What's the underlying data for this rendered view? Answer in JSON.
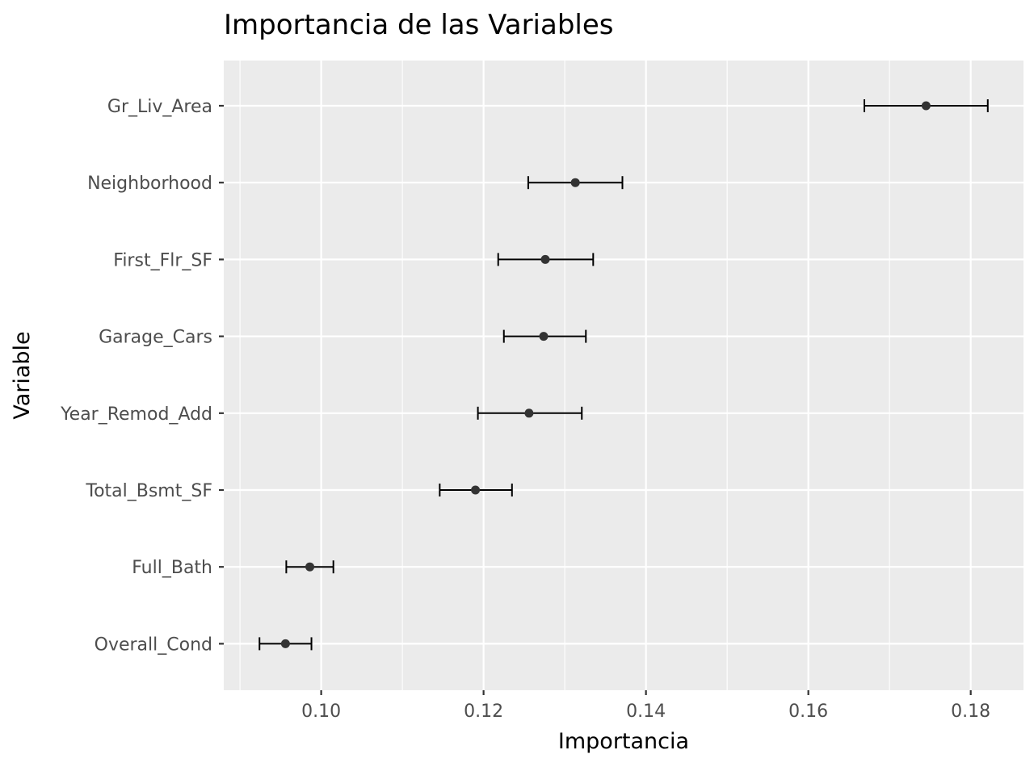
{
  "chart_data": {
    "type": "scatter",
    "title": "Importancia de las Variables",
    "xlabel": "Importancia",
    "ylabel": "Variable",
    "xlim": [
      0.088,
      0.1865
    ],
    "x_ticks": [
      0.1,
      0.12,
      0.14,
      0.16,
      0.18
    ],
    "x_tick_labels": [
      "0.10",
      "0.12",
      "0.14",
      "0.16",
      "0.18"
    ],
    "grid": true,
    "categories": [
      "Gr_Liv_Area",
      "Neighborhood",
      "First_Flr_SF",
      "Garage_Cars",
      "Year_Remod_Add",
      "Total_Bsmt_SF",
      "Full_Bath",
      "Overall_Cond"
    ],
    "series": [
      {
        "values": [
          0.1745,
          0.1313,
          0.1276,
          0.1274,
          0.1256,
          0.119,
          0.0986,
          0.0956
        ],
        "error_low": [
          0.1669,
          0.1255,
          0.1218,
          0.1225,
          0.1193,
          0.1146,
          0.0957,
          0.0924
        ],
        "error_high": [
          0.1821,
          0.1371,
          0.1335,
          0.1326,
          0.1321,
          0.1235,
          0.1015,
          0.0988
        ]
      }
    ],
    "colors": {
      "panel": "#ebebeb",
      "grid": "#ffffff",
      "point": "#333333",
      "errorbar": "#000000"
    }
  }
}
